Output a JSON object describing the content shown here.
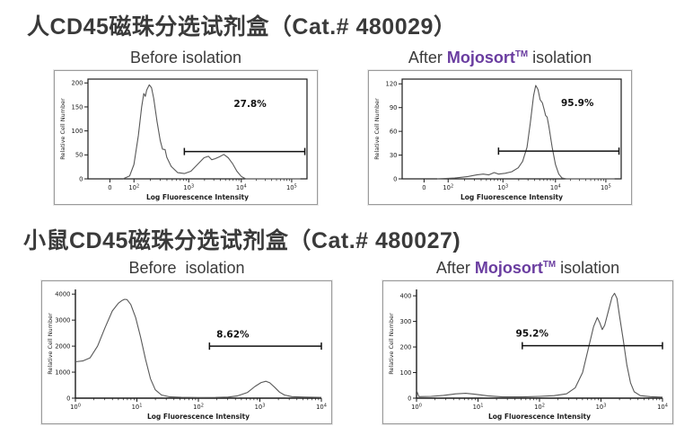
{
  "colors": {
    "title": "#3a3a3a",
    "brand_purple": "#6a3da0",
    "axis": "#1c1c1c",
    "curve": "#585858",
    "gate": "#111111",
    "panel_border": "#9b9b9b"
  },
  "sections": [
    {
      "title": "人CD45磁珠分选试剂盒（Cat.# 480029）",
      "panels": [
        {
          "heading": {
            "prefix": "Before isolation",
            "brand": "",
            "tm": "",
            "suffix": ""
          }
        },
        {
          "heading": {
            "prefix": "After ",
            "brand": "Mojosort",
            "tm": "TM",
            "suffix": " isolation"
          }
        }
      ]
    },
    {
      "title": "小鼠CD45磁珠分选试剂盒（Cat.# 480027)",
      "panels": [
        {
          "heading": {
            "prefix": "Before  isolation",
            "brand": "",
            "tm": "",
            "suffix": ""
          }
        },
        {
          "heading": {
            "prefix": "After ",
            "brand": "Mojosort",
            "tm": "TM",
            "suffix": " isolation"
          }
        }
      ]
    }
  ],
  "chart_data": [
    {
      "name": "human-cd45-before-isolation",
      "type": "line",
      "xscale": "log",
      "frame": "box",
      "ylabel": "Relative Cell Number",
      "xlabel": "Log Fluorescence Intensity",
      "yticks": [
        0,
        50,
        100,
        150,
        200
      ],
      "ylim": [
        0,
        208
      ],
      "xticks": [
        {
          "t": "0",
          "e": "",
          "f": 0.1
        },
        {
          "t": "10",
          "e": "2",
          "f": 0.21
        },
        {
          "t": "10",
          "e": "3",
          "f": 0.46
        },
        {
          "t": "10",
          "e": "4",
          "f": 0.7
        },
        {
          "t": "10",
          "e": "5",
          "f": 0.93
        }
      ],
      "gate": {
        "y": 57,
        "x1": 0.44,
        "x2": 0.99,
        "label": "27.8%",
        "label_x": 0.74,
        "label_y": 150
      },
      "curve": [
        [
          0.16,
          0
        ],
        [
          0.19,
          6
        ],
        [
          0.21,
          30
        ],
        [
          0.23,
          90
        ],
        [
          0.245,
          150
        ],
        [
          0.255,
          178
        ],
        [
          0.262,
          172
        ],
        [
          0.268,
          185
        ],
        [
          0.28,
          196
        ],
        [
          0.29,
          190
        ],
        [
          0.3,
          168
        ],
        [
          0.315,
          120
        ],
        [
          0.33,
          80
        ],
        [
          0.34,
          62
        ],
        [
          0.352,
          61
        ],
        [
          0.36,
          45
        ],
        [
          0.38,
          26
        ],
        [
          0.41,
          13
        ],
        [
          0.44,
          11
        ],
        [
          0.47,
          16
        ],
        [
          0.5,
          30
        ],
        [
          0.53,
          44
        ],
        [
          0.55,
          47
        ],
        [
          0.565,
          40
        ],
        [
          0.58,
          42
        ],
        [
          0.6,
          46
        ],
        [
          0.62,
          51
        ],
        [
          0.64,
          44
        ],
        [
          0.66,
          32
        ],
        [
          0.68,
          16
        ],
        [
          0.7,
          5
        ],
        [
          0.72,
          0
        ],
        [
          0.97,
          0
        ]
      ]
    },
    {
      "name": "human-cd45-after-mojosort-isolation",
      "type": "line",
      "xscale": "log",
      "frame": "box",
      "ylabel": "Relative Cell Number",
      "xlabel": "Log Fluorescence Intensity",
      "yticks": [
        0,
        30,
        60,
        90,
        120
      ],
      "ylim": [
        0,
        126
      ],
      "xticks": [
        {
          "t": "0",
          "e": "",
          "f": 0.1
        },
        {
          "t": "10",
          "e": "2",
          "f": 0.21
        },
        {
          "t": "10",
          "e": "3",
          "f": 0.46
        },
        {
          "t": "10",
          "e": "4",
          "f": 0.7
        },
        {
          "t": "10",
          "e": "5",
          "f": 0.93
        }
      ],
      "gate": {
        "y": 35,
        "x1": 0.44,
        "x2": 0.99,
        "label": "95.9%",
        "label_x": 0.8,
        "label_y": 92
      },
      "curve": [
        [
          0.16,
          0
        ],
        [
          0.24,
          1
        ],
        [
          0.3,
          3
        ],
        [
          0.34,
          5
        ],
        [
          0.37,
          6
        ],
        [
          0.395,
          5
        ],
        [
          0.42,
          8
        ],
        [
          0.44,
          6
        ],
        [
          0.47,
          7
        ],
        [
          0.5,
          9
        ],
        [
          0.53,
          14
        ],
        [
          0.55,
          22
        ],
        [
          0.57,
          40
        ],
        [
          0.585,
          70
        ],
        [
          0.6,
          105
        ],
        [
          0.61,
          118
        ],
        [
          0.62,
          113
        ],
        [
          0.63,
          100
        ],
        [
          0.64,
          96
        ],
        [
          0.648,
          88
        ],
        [
          0.655,
          80
        ],
        [
          0.662,
          78
        ],
        [
          0.67,
          66
        ],
        [
          0.685,
          40
        ],
        [
          0.7,
          18
        ],
        [
          0.715,
          6
        ],
        [
          0.73,
          1
        ],
        [
          0.75,
          0
        ],
        [
          0.97,
          0
        ]
      ]
    },
    {
      "name": "mouse-cd45-before-isolation",
      "type": "line",
      "xscale": "log",
      "frame": "axes",
      "ylabel": "Relative Cell Number",
      "xlabel": "Log Fluorescence Intensity",
      "yticks": [
        0,
        1000,
        2000,
        3000,
        4000
      ],
      "ylim": [
        0,
        4180
      ],
      "xticks": [
        {
          "t": "10",
          "e": "0",
          "f": 0.0
        },
        {
          "t": "10",
          "e": "1",
          "f": 0.25
        },
        {
          "t": "10",
          "e": "2",
          "f": 0.5
        },
        {
          "t": "10",
          "e": "3",
          "f": 0.75
        },
        {
          "t": "10",
          "e": "4",
          "f": 1.0
        }
      ],
      "gate": {
        "y": 2000,
        "x1": 0.545,
        "x2": 1.0,
        "label": "8.62%",
        "label_x": 0.64,
        "label_y": 2330
      },
      "curve": [
        [
          0.0,
          1400
        ],
        [
          0.03,
          1430
        ],
        [
          0.06,
          1550
        ],
        [
          0.09,
          2000
        ],
        [
          0.12,
          2700
        ],
        [
          0.15,
          3350
        ],
        [
          0.175,
          3650
        ],
        [
          0.19,
          3760
        ],
        [
          0.2,
          3800
        ],
        [
          0.21,
          3790
        ],
        [
          0.225,
          3600
        ],
        [
          0.245,
          3100
        ],
        [
          0.265,
          2350
        ],
        [
          0.285,
          1500
        ],
        [
          0.305,
          750
        ],
        [
          0.325,
          320
        ],
        [
          0.35,
          120
        ],
        [
          0.385,
          50
        ],
        [
          0.43,
          30
        ],
        [
          0.5,
          25
        ],
        [
          0.57,
          28
        ],
        [
          0.62,
          40
        ],
        [
          0.66,
          90
        ],
        [
          0.7,
          220
        ],
        [
          0.73,
          450
        ],
        [
          0.755,
          600
        ],
        [
          0.775,
          650
        ],
        [
          0.79,
          590
        ],
        [
          0.81,
          420
        ],
        [
          0.83,
          230
        ],
        [
          0.85,
          120
        ],
        [
          0.88,
          60
        ],
        [
          0.93,
          40
        ],
        [
          1.0,
          28
        ]
      ]
    },
    {
      "name": "mouse-cd45-after-mojosort-isolation",
      "type": "line",
      "xscale": "log",
      "frame": "axes",
      "ylabel": "Relative Cell Number",
      "xlabel": "Log Fluorescence Intensity",
      "yticks": [
        0,
        100,
        200,
        300,
        400
      ],
      "ylim": [
        0,
        425
      ],
      "xticks": [
        {
          "t": "10",
          "e": "0",
          "f": 0.0
        },
        {
          "t": "10",
          "e": "1",
          "f": 0.25
        },
        {
          "t": "10",
          "e": "2",
          "f": 0.5
        },
        {
          "t": "10",
          "e": "3",
          "f": 0.75
        },
        {
          "t": "10",
          "e": "4",
          "f": 1.0
        }
      ],
      "gate": {
        "y": 205,
        "x1": 0.43,
        "x2": 1.0,
        "label": "95.2%",
        "label_x": 0.47,
        "label_y": 240
      },
      "curve": [
        [
          0.0,
          30
        ],
        [
          0.01,
          6
        ],
        [
          0.06,
          7
        ],
        [
          0.11,
          11
        ],
        [
          0.16,
          17
        ],
        [
          0.2,
          19
        ],
        [
          0.24,
          15
        ],
        [
          0.29,
          9
        ],
        [
          0.35,
          5
        ],
        [
          0.43,
          5
        ],
        [
          0.5,
          7
        ],
        [
          0.56,
          10
        ],
        [
          0.61,
          17
        ],
        [
          0.645,
          40
        ],
        [
          0.675,
          100
        ],
        [
          0.7,
          200
        ],
        [
          0.72,
          280
        ],
        [
          0.735,
          315
        ],
        [
          0.745,
          295
        ],
        [
          0.755,
          268
        ],
        [
          0.765,
          285
        ],
        [
          0.78,
          340
        ],
        [
          0.795,
          395
        ],
        [
          0.805,
          410
        ],
        [
          0.815,
          390
        ],
        [
          0.825,
          325
        ],
        [
          0.84,
          230
        ],
        [
          0.855,
          130
        ],
        [
          0.87,
          60
        ],
        [
          0.885,
          25
        ],
        [
          0.91,
          10
        ],
        [
          0.95,
          6
        ],
        [
          1.0,
          4
        ]
      ]
    }
  ]
}
